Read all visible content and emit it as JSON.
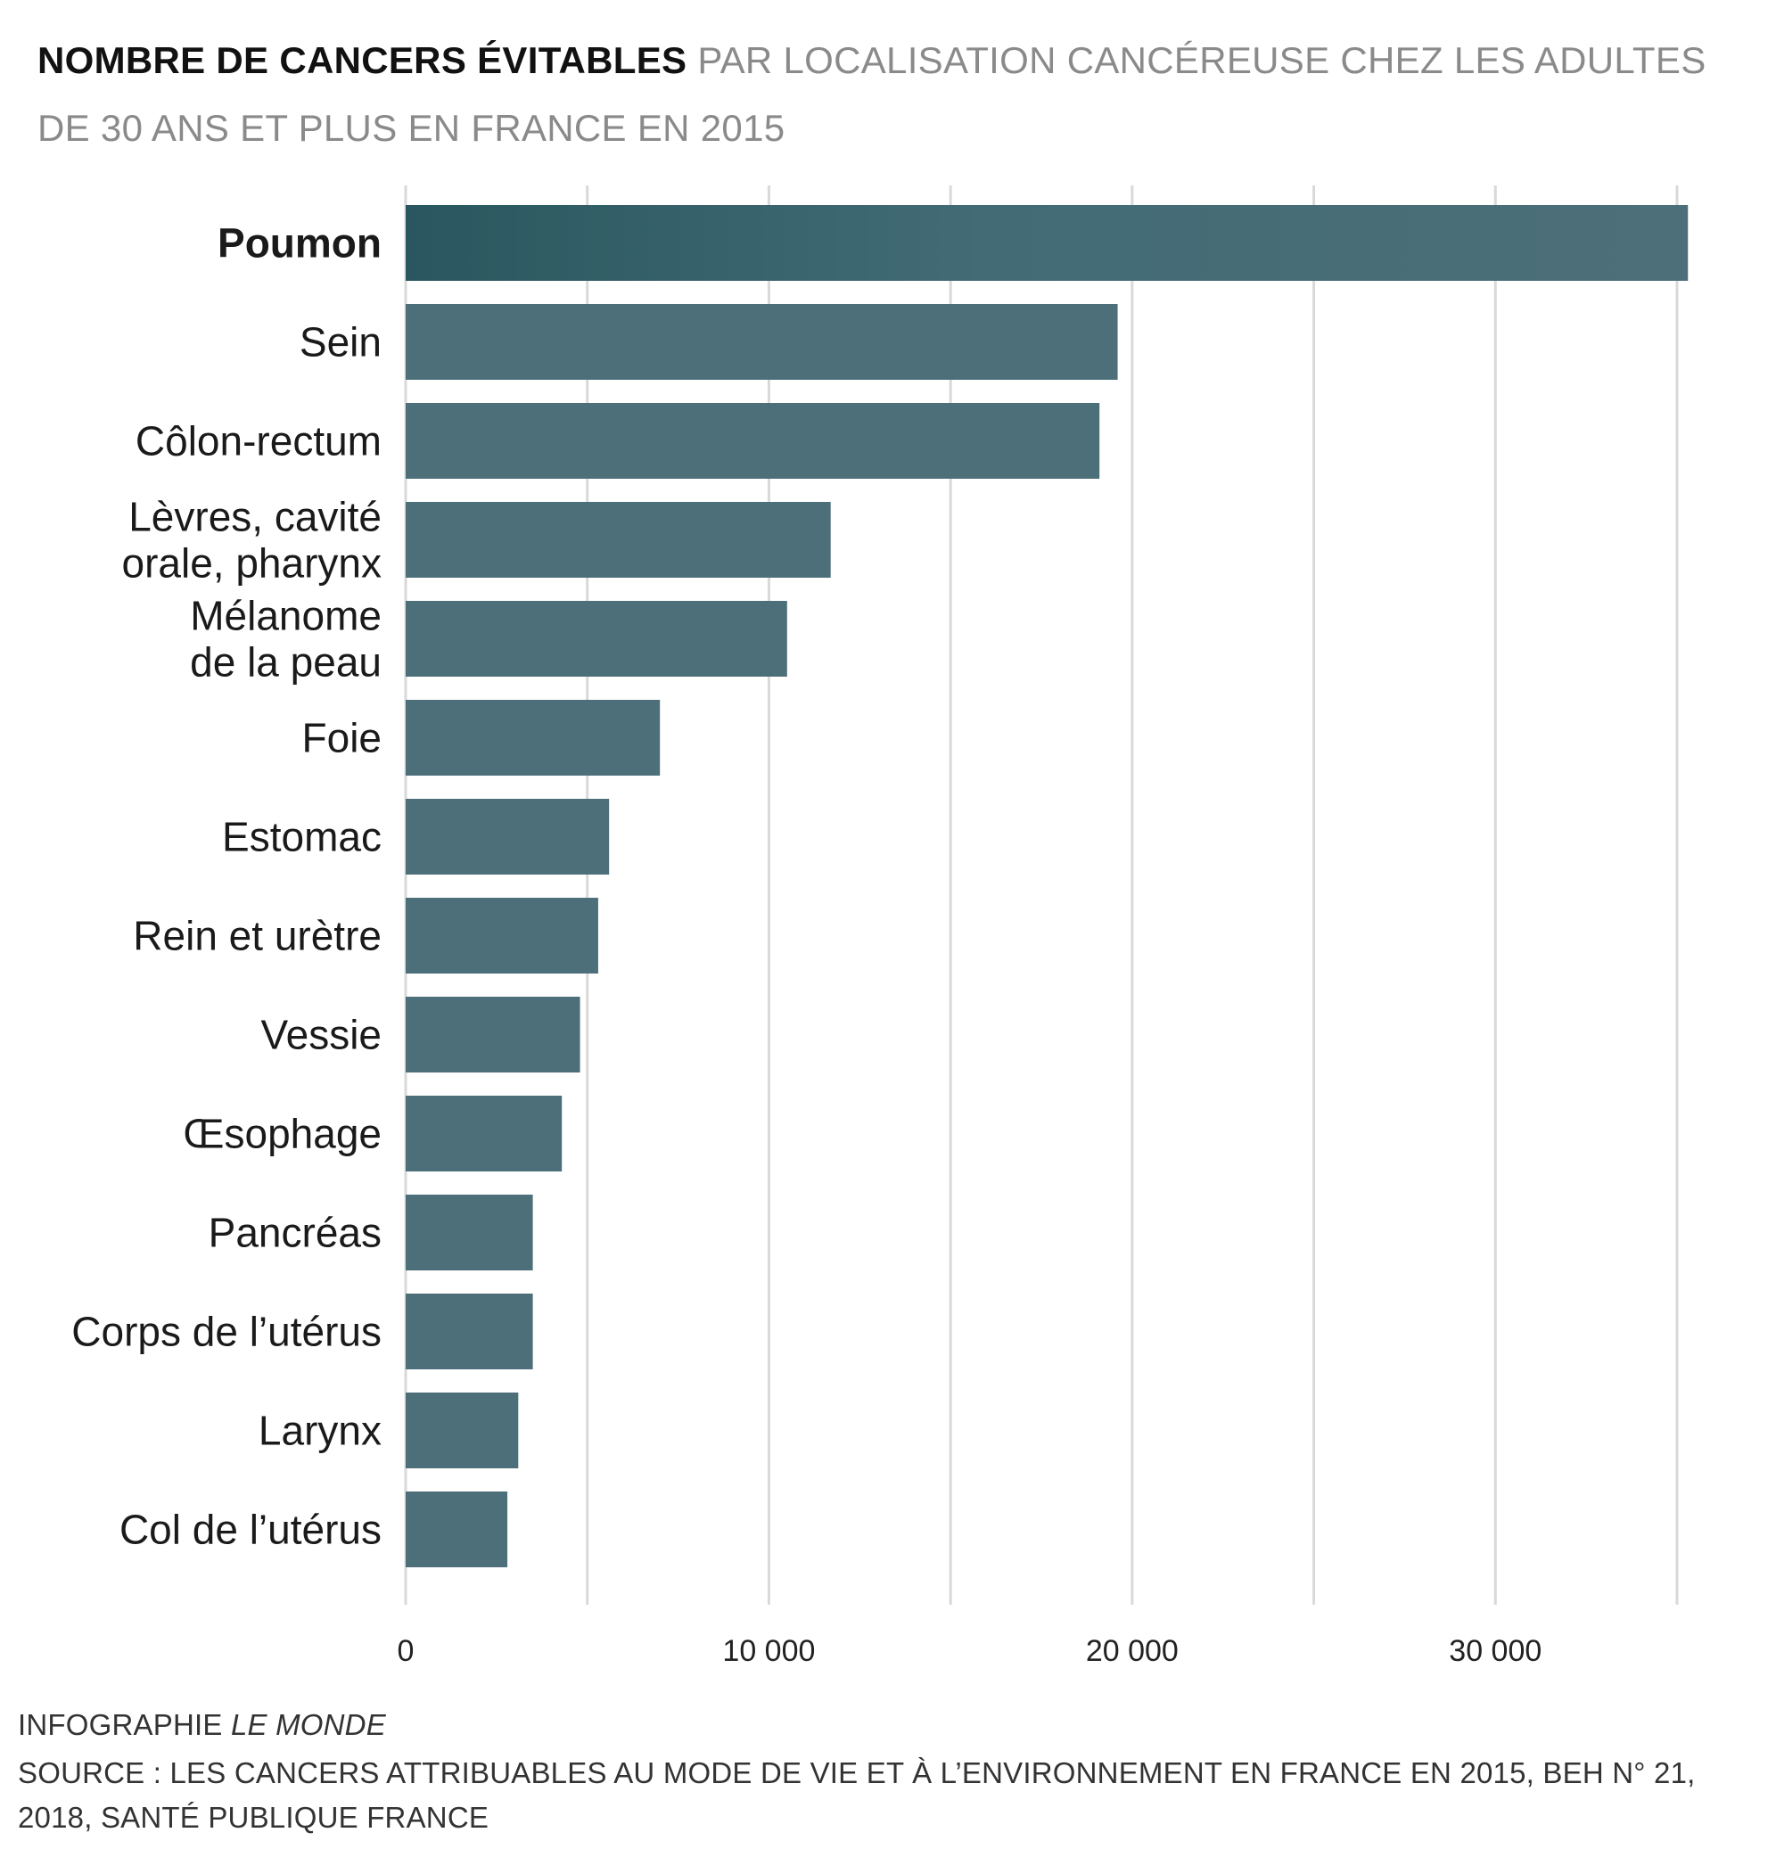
{
  "header": {
    "title_bold": "NOMBRE DE CANCERS ÉVITABLES",
    "title_rest": "PAR LOCALISATION CANCÉREUSE CHEZ LES ADULTES DE 30 ANS ET PLUS EN FRANCE EN 2015"
  },
  "colors": {
    "bar": "#4d6f79",
    "bar_highlight": "#2f5a63",
    "grid": "#d9d9d9"
  },
  "chart_data": {
    "type": "bar",
    "orientation": "horizontal",
    "title": "NOMBRE DE CANCERS ÉVITABLES PAR LOCALISATION CANCÉREUSE CHEZ LES ADULTES DE 30 ANS ET PLUS EN FRANCE EN 2015",
    "categories": [
      "Poumon",
      "Sein",
      "Côlon-rectum",
      "Lèvres, cavité\norale, pharynx",
      "Mélanome\nde la peau",
      "Foie",
      "Estomac",
      "Rein et urètre",
      "Vessie",
      "Œsophage",
      "Pancréas",
      "Corps de l’utérus",
      "Larynx",
      "Col de l’utérus"
    ],
    "values": [
      35300,
      19600,
      19100,
      11700,
      10500,
      7000,
      5600,
      5300,
      4800,
      4300,
      3500,
      3500,
      3100,
      2800
    ],
    "highlight": "Poumon",
    "xlim": [
      0,
      35000
    ],
    "ticks": [
      0,
      10000,
      20000,
      30000
    ],
    "tick_labels": [
      "0",
      "10 000",
      "20 000",
      "30 000"
    ],
    "gridlines": [
      0,
      5000,
      10000,
      15000,
      20000,
      25000,
      30000,
      35000
    ],
    "grid": true,
    "xlabel": "",
    "ylabel": ""
  },
  "footer": {
    "credit_prefix": "INFOGRAPHIE",
    "credit_publisher": "LE MONDE",
    "source": "SOURCE :  LES CANCERS ATTRIBUABLES AU MODE DE VIE ET À L’ENVIRONNEMENT EN FRANCE EN 2015, BEH N° 21, 2018, SANTÉ PUBLIQUE FRANCE"
  }
}
